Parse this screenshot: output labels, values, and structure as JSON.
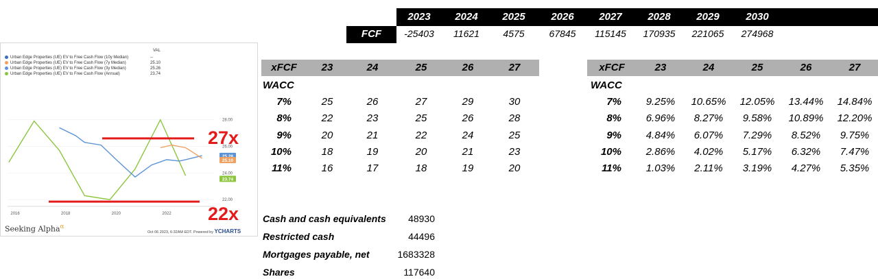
{
  "chart_data": {
    "type": "line",
    "title": "",
    "legend_header": "VAL",
    "legend": [
      {
        "name": "Urban Edge Properties (UE) EV to Free Cash Flow (10y Median)",
        "value": "--",
        "color": "#3b6fb6"
      },
      {
        "name": "Urban Edge Properties (UE) EV to Free Cash Flow (7y Median)",
        "value": "25.10",
        "color": "#f0a060"
      },
      {
        "name": "Urban Edge Properties (UE) EV to Free Cash Flow (3y Median)",
        "value": "25.26",
        "color": "#5b93d6"
      },
      {
        "name": "Urban Edge Properties (UE) EV to Free Cash Flow (Annual)",
        "value": "23.74",
        "color": "#8cc63f"
      }
    ],
    "x_ticks": [
      "2016",
      "2018",
      "2020",
      "2022"
    ],
    "y_ticks": [
      "22.00",
      "24.00",
      "26.00",
      "28.00"
    ],
    "ylim": [
      21.6,
      28.6
    ],
    "xlim": [
      2015.7,
      2023.9
    ],
    "series": [
      {
        "name": "Urban Edge Properties (UE) EV to Free Cash Flow (Annual)",
        "color": "#8cc63f",
        "points": [
          [
            2015.75,
            24.8
          ],
          [
            2016.75,
            27.9
          ],
          [
            2017.75,
            25.7
          ],
          [
            2018.75,
            22.3
          ],
          [
            2019.75,
            22.0
          ],
          [
            2020.75,
            24.3
          ],
          [
            2021.75,
            28.0
          ],
          [
            2022.75,
            23.8
          ]
        ]
      },
      {
        "name": "Urban Edge Properties (UE) EV to Free Cash Flow (3y Median)",
        "color": "#5b93d6",
        "points": [
          [
            2017.75,
            27.4
          ],
          [
            2018.4,
            26.8
          ],
          [
            2018.75,
            26.3
          ],
          [
            2019.4,
            26.1
          ],
          [
            2020.0,
            25.0
          ],
          [
            2020.75,
            23.7
          ],
          [
            2021.4,
            24.6
          ],
          [
            2022.0,
            25.0
          ],
          [
            2022.5,
            24.9
          ],
          [
            2022.75,
            25.0
          ],
          [
            2023.4,
            25.3
          ]
        ]
      },
      {
        "name": "Urban Edge Properties (UE) EV to Free Cash Flow (7y Median)",
        "color": "#f0a060",
        "points": [
          [
            2021.75,
            25.9
          ],
          [
            2022.2,
            26.1
          ],
          [
            2022.75,
            25.9
          ],
          [
            2023.0,
            25.6
          ],
          [
            2023.4,
            25.1
          ]
        ]
      }
    ],
    "end_labels": [
      {
        "text": "25.26",
        "color": "#5b93d6",
        "y": 25.26
      },
      {
        "text": "25.10",
        "color": "#f0a060",
        "y": 25.1
      },
      {
        "text": "23.74",
        "color": "#8cc63f",
        "y": 23.74
      }
    ],
    "annotations": [
      {
        "text": "27x",
        "y": 27.0
      },
      {
        "text": "22x",
        "y": 22.0
      }
    ],
    "brand": "Seeking Alpha",
    "brand_alpha": "α",
    "footer": "Oct 06 2023, 6:32AM EDT.  Powered by",
    "footer_brand": "YCHARTS"
  },
  "fcf_table": {
    "years": [
      "2023",
      "2024",
      "2025",
      "2026",
      "2027",
      "2028",
      "2029",
      "2030"
    ],
    "label": "FCF",
    "values": [
      "-25403",
      "11621",
      "4575",
      "67845",
      "115145",
      "170935",
      "221065",
      "274968"
    ]
  },
  "price_table": {
    "corner": "xFCF",
    "cols": [
      "23",
      "24",
      "25",
      "26",
      "27"
    ],
    "row_header": "WACC",
    "rows": [
      {
        "wacc": "7%",
        "vals": [
          "25",
          "26",
          "27",
          "29",
          "30"
        ]
      },
      {
        "wacc": "8%",
        "vals": [
          "22",
          "23",
          "25",
          "26",
          "28"
        ]
      },
      {
        "wacc": "9%",
        "vals": [
          "20",
          "21",
          "22",
          "24",
          "25"
        ]
      },
      {
        "wacc": "10%",
        "vals": [
          "18",
          "19",
          "20",
          "21",
          "23"
        ]
      },
      {
        "wacc": "11%",
        "vals": [
          "16",
          "17",
          "18",
          "19",
          "20"
        ]
      }
    ]
  },
  "return_table": {
    "corner": "xFCF",
    "cols": [
      "23",
      "24",
      "25",
      "26",
      "27"
    ],
    "row_header": "WACC",
    "rows": [
      {
        "wacc": "7%",
        "vals": [
          "9.25%",
          "10.65%",
          "12.05%",
          "13.44%",
          "14.84%"
        ]
      },
      {
        "wacc": "8%",
        "vals": [
          "6.96%",
          "8.27%",
          "9.58%",
          "10.89%",
          "12.20%"
        ]
      },
      {
        "wacc": "9%",
        "vals": [
          "4.84%",
          "6.07%",
          "7.29%",
          "8.52%",
          "9.75%"
        ]
      },
      {
        "wacc": "10%",
        "vals": [
          "2.86%",
          "4.02%",
          "5.17%",
          "6.32%",
          "7.47%"
        ]
      },
      {
        "wacc": "11%",
        "vals": [
          "1.03%",
          "2.11%",
          "3.19%",
          "4.27%",
          "5.35%"
        ]
      }
    ]
  },
  "balance": [
    {
      "label": "Cash and cash equivalents",
      "value": "48930"
    },
    {
      "label": "Restricted cash",
      "value": "44496"
    },
    {
      "label": "Mortgages payable, net",
      "value": "1683328"
    },
    {
      "label": "Shares",
      "value": "117640"
    }
  ]
}
